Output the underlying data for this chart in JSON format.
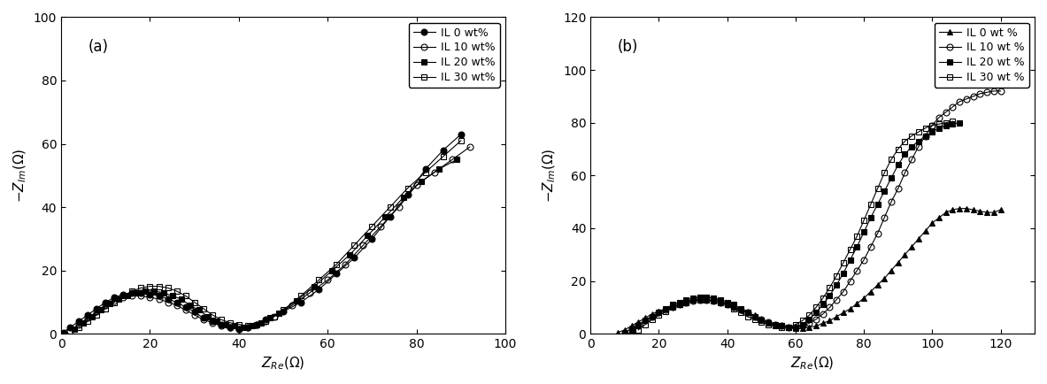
{
  "panel_a": {
    "title": "(a)",
    "xlabel": "Z_{Re}(\\Omega)",
    "ylabel": "-Z_{Im}(\\Omega)",
    "xlim": [
      0,
      100
    ],
    "ylim": [
      0,
      100
    ],
    "xticks": [
      0,
      20,
      40,
      60,
      80,
      100
    ],
    "yticks": [
      0,
      20,
      40,
      60,
      80,
      100
    ],
    "legend_labels": [
      "IL 0 wt%",
      "IL 10 wt%",
      "IL 20 wt%",
      "IL 30 wt%"
    ],
    "series": [
      {
        "label": "IL 0 wt%",
        "marker": "o",
        "fillstyle": "full",
        "markersize": 5,
        "x": [
          0.5,
          2,
          4,
          6,
          8,
          10,
          12,
          14,
          16,
          18,
          20,
          22,
          24,
          26,
          28,
          30,
          32,
          34,
          36,
          38,
          40,
          42,
          44,
          46,
          50,
          54,
          58,
          62,
          66,
          70,
          74,
          78,
          82,
          86,
          90
        ],
        "y": [
          0.5,
          2,
          4,
          6,
          8,
          10,
          11.5,
          12.5,
          13,
          13,
          12.5,
          12,
          11,
          10,
          8.5,
          7,
          5,
          4,
          3,
          2,
          1.5,
          2,
          3,
          4.5,
          7,
          10,
          14,
          19,
          24,
          30,
          37,
          44,
          52,
          58,
          63
        ]
      },
      {
        "label": "IL 10 wt%",
        "marker": "o",
        "fillstyle": "none",
        "markersize": 5,
        "x": [
          2,
          4,
          6,
          8,
          10,
          12,
          14,
          16,
          18,
          20,
          22,
          24,
          26,
          28,
          30,
          32,
          34,
          36,
          38,
          40,
          42,
          44,
          46,
          48,
          52,
          56,
          60,
          64,
          68,
          72,
          76,
          80,
          84,
          88,
          92
        ],
        "y": [
          1,
          3,
          5,
          7,
          9,
          10.5,
          11.5,
          12,
          12,
          11.5,
          11,
          10,
          9,
          7.5,
          6,
          4.5,
          3.5,
          2.5,
          2,
          1.5,
          2,
          3,
          4,
          5.5,
          9,
          13,
          17,
          22,
          28,
          34,
          40,
          47,
          51,
          55,
          59
        ]
      },
      {
        "label": "IL 20 wt%",
        "marker": "s",
        "fillstyle": "full",
        "markersize": 5,
        "x": [
          3,
          5,
          7,
          9,
          11,
          13,
          15,
          17,
          19,
          21,
          23,
          25,
          27,
          29,
          31,
          33,
          35,
          37,
          39,
          41,
          43,
          45,
          47,
          49,
          53,
          57,
          61,
          65,
          69,
          73,
          77,
          81,
          85,
          89
        ],
        "y": [
          1.5,
          3.5,
          5.5,
          7.5,
          9.5,
          11,
          12,
          13,
          13.5,
          13.5,
          13,
          12,
          11,
          9,
          7.5,
          5.5,
          4,
          3,
          2.5,
          2,
          2.5,
          3.5,
          5,
          6.5,
          10.5,
          15,
          20,
          25,
          31,
          37,
          43,
          48,
          52,
          55
        ]
      },
      {
        "label": "IL 30 wt%",
        "marker": "s",
        "fillstyle": "none",
        "markersize": 5,
        "x": [
          4,
          6,
          8,
          10,
          12,
          14,
          16,
          18,
          20,
          22,
          24,
          26,
          28,
          30,
          32,
          34,
          36,
          38,
          40,
          42,
          44,
          46,
          48,
          50,
          54,
          58,
          62,
          66,
          70,
          74,
          78,
          82,
          86,
          90
        ],
        "y": [
          2,
          4,
          6,
          8,
          10,
          12,
          13.5,
          14.5,
          15,
          15,
          14.5,
          13.5,
          12,
          10,
          8,
          6,
          4.5,
          3.5,
          3,
          2.5,
          3,
          4,
          5.5,
          7.5,
          12,
          17,
          22,
          28,
          34,
          40,
          46,
          51,
          56,
          61
        ]
      }
    ]
  },
  "panel_b": {
    "title": "(b)",
    "xlabel": "Z_{Re}(\\Omega)",
    "ylabel": "-Z_{Im}(\\Omega)",
    "xlim": [
      0,
      130
    ],
    "ylim": [
      0,
      120
    ],
    "xticks": [
      0,
      20,
      40,
      60,
      80,
      100,
      120
    ],
    "yticks": [
      0,
      20,
      40,
      60,
      80,
      100,
      120
    ],
    "legend_labels": [
      "IL 0 wt %",
      "IL 10 wt %",
      "IL 20 wt %",
      "IL 30 wt %"
    ],
    "series": [
      {
        "label": "IL 0 wt %",
        "marker": "^",
        "fillstyle": "full",
        "markersize": 5,
        "x": [
          8,
          10,
          12,
          14,
          16,
          18,
          20,
          22,
          24,
          26,
          28,
          30,
          32,
          34,
          36,
          38,
          40,
          42,
          44,
          46,
          48,
          50,
          52,
          54,
          56,
          58,
          60,
          62,
          64,
          66,
          68,
          70,
          72,
          74,
          76,
          78,
          80,
          82,
          84,
          86,
          88,
          90,
          92,
          94,
          96,
          98,
          100,
          102,
          104,
          106,
          108,
          110,
          112,
          114,
          116,
          118,
          120
        ],
        "y": [
          0.5,
          1.5,
          3,
          4.5,
          6,
          7.5,
          8.5,
          9.5,
          10.5,
          11,
          12,
          13,
          13,
          13,
          12.5,
          12,
          11,
          10,
          9,
          8,
          7,
          5.5,
          4.5,
          3.5,
          3,
          2.5,
          2,
          2,
          2.5,
          3,
          4,
          5,
          6.5,
          8,
          9.5,
          11.5,
          13.5,
          16,
          18.5,
          21,
          24,
          27,
          30,
          33,
          36,
          39,
          42,
          44,
          46,
          47,
          47.5,
          47.5,
          47,
          46.5,
          46,
          46,
          47
        ]
      },
      {
        "label": "IL 10 wt %",
        "marker": "o",
        "fillstyle": "none",
        "markersize": 5,
        "x": [
          10,
          12,
          14,
          16,
          18,
          20,
          22,
          24,
          26,
          28,
          30,
          32,
          34,
          36,
          38,
          40,
          42,
          44,
          46,
          48,
          50,
          52,
          54,
          56,
          58,
          60,
          62,
          64,
          66,
          68,
          70,
          72,
          74,
          76,
          78,
          80,
          82,
          84,
          86,
          88,
          90,
          92,
          94,
          96,
          98,
          100,
          102,
          104,
          106,
          108,
          110,
          112,
          114,
          116,
          118,
          120
        ],
        "y": [
          0.5,
          2,
          3.5,
          5,
          6.5,
          8,
          9,
          10,
          11,
          12,
          12.5,
          13,
          13,
          12.5,
          12,
          11,
          10,
          9,
          8,
          6.5,
          5.5,
          4.5,
          3.5,
          3,
          2.5,
          2.5,
          3,
          4,
          5.5,
          7.5,
          10,
          13,
          16,
          20,
          24,
          28,
          33,
          38,
          44,
          50,
          55,
          61,
          66,
          71,
          75,
          79,
          82,
          84,
          86,
          88,
          89,
          90,
          91,
          91.5,
          92,
          92
        ]
      },
      {
        "label": "IL 20 wt %",
        "marker": "s",
        "fillstyle": "full",
        "markersize": 5,
        "x": [
          12,
          14,
          16,
          18,
          20,
          22,
          24,
          26,
          28,
          30,
          32,
          34,
          36,
          38,
          40,
          42,
          44,
          46,
          48,
          50,
          52,
          54,
          56,
          58,
          60,
          62,
          64,
          66,
          68,
          70,
          72,
          74,
          76,
          78,
          80,
          82,
          84,
          86,
          88,
          90,
          92,
          94,
          96,
          98,
          100,
          102,
          104,
          106,
          108
        ],
        "y": [
          1,
          3,
          5,
          6.5,
          8,
          9.5,
          11,
          12,
          13,
          13.5,
          14,
          14,
          13.5,
          13,
          12,
          11,
          9.5,
          8,
          6.5,
          5,
          4,
          3.5,
          3,
          2.5,
          2.5,
          3.5,
          5.5,
          8,
          11,
          14.5,
          18.5,
          23,
          28,
          33,
          38.5,
          44,
          49,
          54,
          59,
          64,
          68,
          71,
          73,
          75,
          76.5,
          78,
          79,
          79.5,
          80
        ]
      },
      {
        "label": "IL 30 wt %",
        "marker": "s",
        "fillstyle": "none",
        "markersize": 5,
        "x": [
          14,
          16,
          18,
          20,
          22,
          24,
          26,
          28,
          30,
          32,
          34,
          36,
          38,
          40,
          42,
          44,
          46,
          48,
          50,
          52,
          54,
          56,
          58,
          60,
          62,
          64,
          66,
          68,
          70,
          72,
          74,
          76,
          78,
          80,
          82,
          84,
          86,
          88,
          90,
          92,
          94,
          96,
          98,
          100,
          102,
          104,
          106
        ],
        "y": [
          1.5,
          3.5,
          5.5,
          7,
          8.5,
          10,
          11,
          12,
          13,
          14,
          14,
          13.5,
          12.5,
          11,
          9.5,
          8,
          6.5,
          5.5,
          4.5,
          3.5,
          3,
          2.5,
          2.5,
          3.5,
          5,
          7,
          10,
          13.5,
          17.5,
          22,
          27,
          32,
          37,
          43,
          49,
          55,
          61,
          66,
          70,
          73,
          75,
          76.5,
          78,
          79,
          79.5,
          80,
          80.5
        ]
      }
    ]
  },
  "figure_bg": "#ffffff",
  "axes_bg": "#ffffff",
  "line_color": "#000000",
  "fontsize_label": 11,
  "fontsize_tick": 10,
  "fontsize_legend": 9,
  "fontsize_panel_label": 12
}
